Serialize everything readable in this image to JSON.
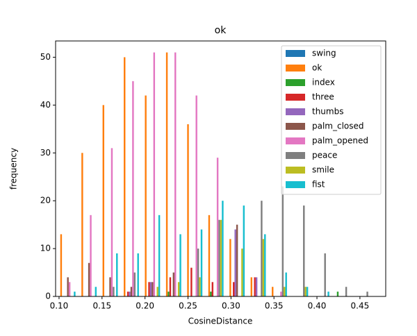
{
  "chart_data": {
    "type": "histogram",
    "title": "ok",
    "xlabel": "CosineDistance",
    "ylabel": "frequency",
    "bins": [
      0.097,
      0.1216,
      0.1462,
      0.1708,
      0.1954,
      0.22,
      0.2446,
      0.2692,
      0.2938,
      0.3184,
      0.343,
      0.3676,
      0.3922,
      0.4168,
      0.4414,
      0.466
    ],
    "series": [
      {
        "name": "swing",
        "color": "#1f77b4",
        "values": [
          0,
          0,
          0,
          0,
          0,
          0,
          0,
          0,
          0,
          0,
          0,
          0,
          0,
          0,
          0
        ]
      },
      {
        "name": "ok",
        "color": "#ff7f0e",
        "values": [
          13,
          30,
          40,
          50,
          42,
          51,
          36,
          17,
          12,
          4,
          2,
          0,
          0,
          0,
          0
        ]
      },
      {
        "name": "index",
        "color": "#2ca02c",
        "values": [
          0,
          0,
          0,
          0,
          0,
          1,
          0,
          1,
          0,
          0,
          0,
          0,
          0,
          1,
          0
        ]
      },
      {
        "name": "three",
        "color": "#d62728",
        "values": [
          0,
          0,
          0,
          1,
          3,
          4,
          6,
          3,
          3,
          4,
          0,
          0,
          0,
          0,
          0
        ]
      },
      {
        "name": "thumbs",
        "color": "#9467bd",
        "values": [
          0,
          0,
          0,
          1,
          3,
          0,
          0,
          0,
          14,
          4,
          0,
          0,
          0,
          0,
          0
        ]
      },
      {
        "name": "palm_closed",
        "color": "#8c564b",
        "values": [
          4,
          7,
          4,
          2,
          3,
          5,
          0,
          0,
          15,
          0,
          0,
          0,
          0,
          0,
          0
        ]
      },
      {
        "name": "palm_opened",
        "color": "#e377c2",
        "values": [
          3,
          17,
          31,
          45,
          51,
          51,
          42,
          29,
          0,
          0,
          1,
          0,
          0,
          0,
          0
        ]
      },
      {
        "name": "peace",
        "color": "#7f7f7f",
        "values": [
          0,
          0,
          2,
          5,
          0,
          0,
          10,
          16,
          0,
          20,
          23,
          19,
          9,
          2,
          1
        ]
      },
      {
        "name": "smile",
        "color": "#bcbd22",
        "values": [
          0,
          0,
          0,
          0,
          2,
          3,
          4,
          16,
          10,
          12,
          2,
          2,
          0,
          0,
          0
        ]
      },
      {
        "name": "fist",
        "color": "#17becf",
        "values": [
          1,
          2,
          9,
          9,
          17,
          13,
          14,
          20,
          19,
          13,
          5,
          2,
          1,
          0,
          0
        ]
      }
    ],
    "xlim": [
      0.096,
      0.48
    ],
    "ylim": [
      0,
      53.4
    ],
    "xticks": [
      {
        "value": 0.1,
        "label": "0.10"
      },
      {
        "value": 0.15,
        "label": "0.15"
      },
      {
        "value": 0.2,
        "label": "0.20"
      },
      {
        "value": 0.25,
        "label": "0.25"
      },
      {
        "value": 0.3,
        "label": "0.30"
      },
      {
        "value": 0.35,
        "label": "0.35"
      },
      {
        "value": 0.4,
        "label": "0.40"
      },
      {
        "value": 0.45,
        "label": "0.45"
      }
    ],
    "yticks": [
      0,
      10,
      20,
      30,
      40,
      50
    ],
    "legend": "upper right"
  }
}
